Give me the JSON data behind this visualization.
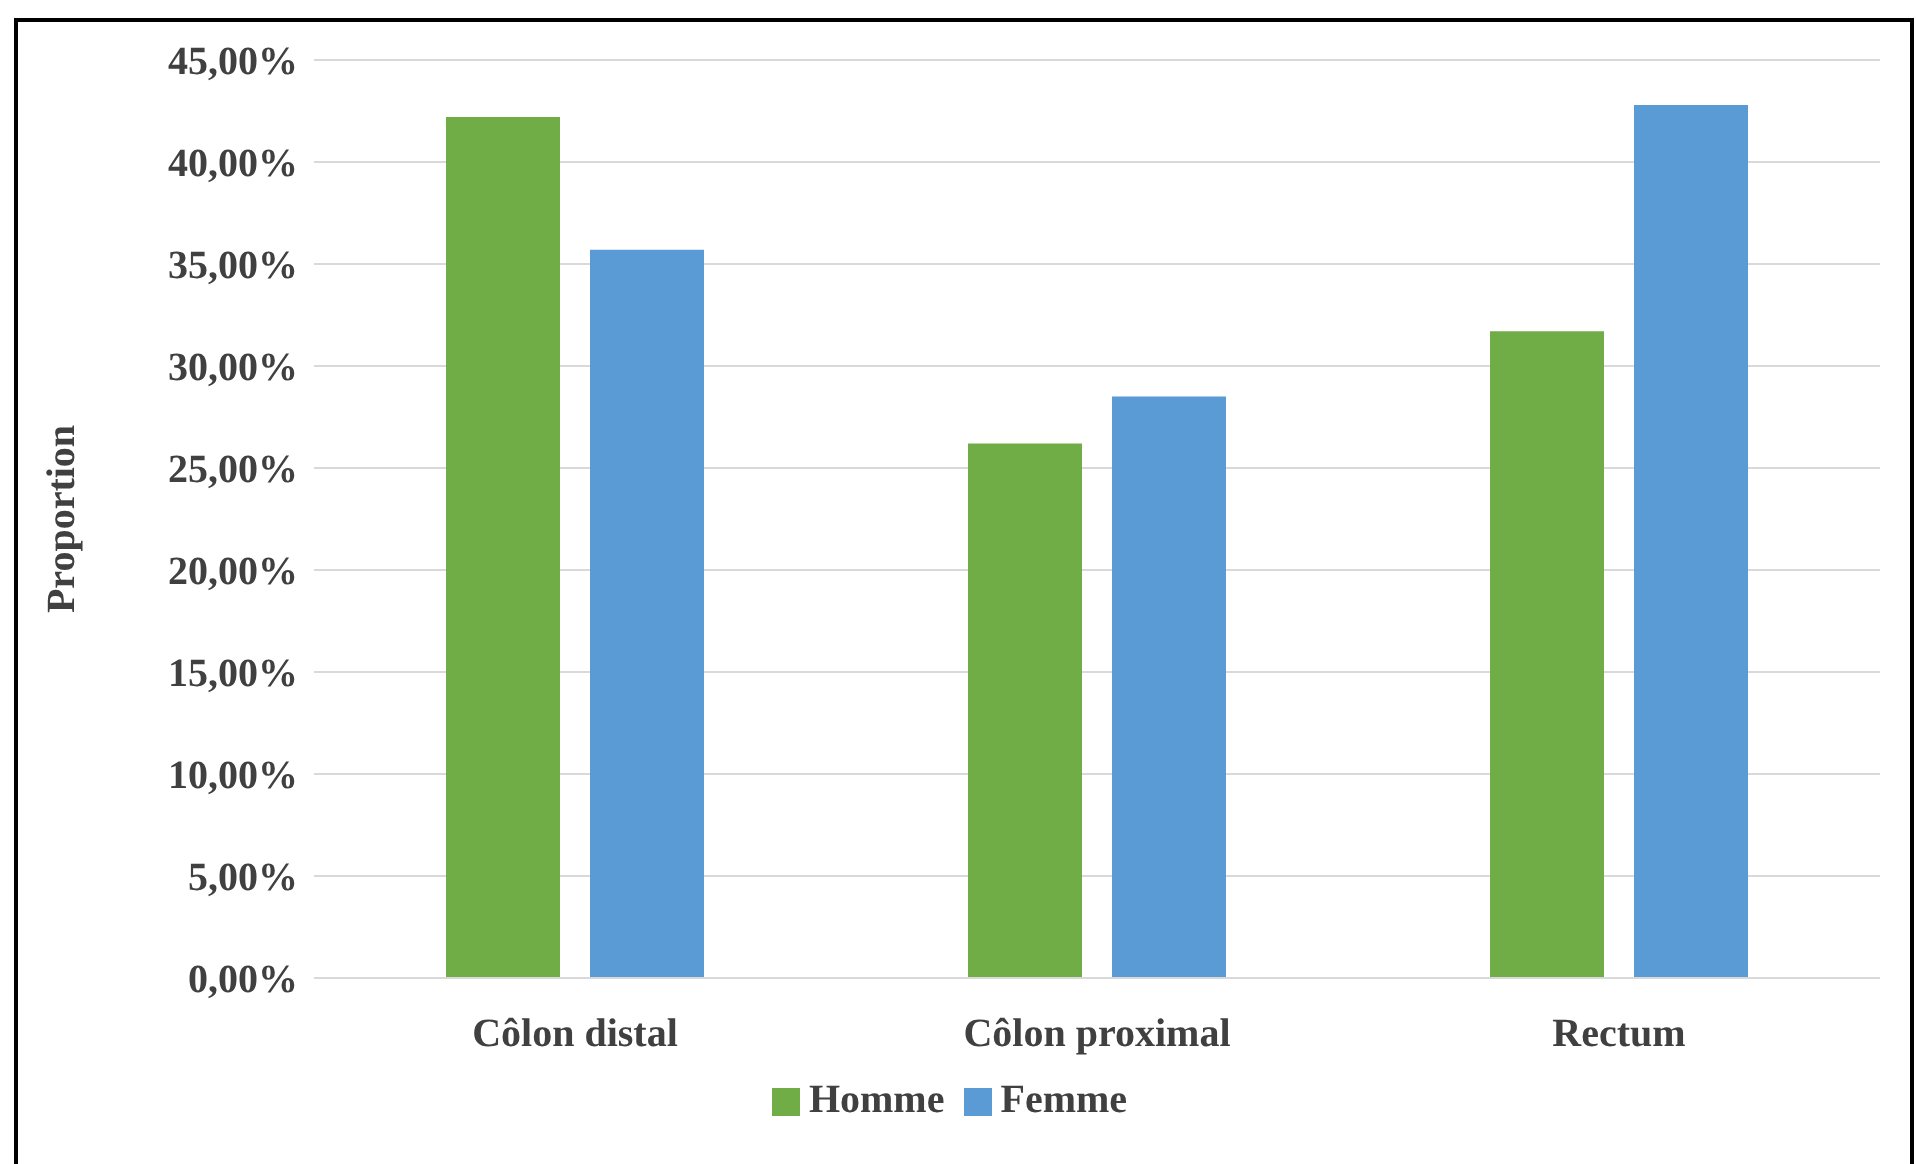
{
  "chart_data": {
    "type": "bar",
    "ylabel": "Proportion",
    "categories": [
      "Côlon distal",
      "Côlon proximal",
      "Rectum"
    ],
    "series": [
      {
        "name": "Homme",
        "color": "#70ad47",
        "values": [
          42.2,
          26.2,
          31.7
        ]
      },
      {
        "name": "Femme",
        "color": "#5b9bd5",
        "values": [
          35.7,
          28.5,
          42.8
        ]
      }
    ],
    "ylim": [
      0,
      45
    ],
    "yticks": [
      {
        "value": 0,
        "label": "0,00%"
      },
      {
        "value": 5,
        "label": "5,00%"
      },
      {
        "value": 10,
        "label": "10,00%"
      },
      {
        "value": 15,
        "label": "15,00%"
      },
      {
        "value": 20,
        "label": "20,00%"
      },
      {
        "value": 25,
        "label": "25,00%"
      },
      {
        "value": 30,
        "label": "30,00%"
      },
      {
        "value": 35,
        "label": "35,00%"
      },
      {
        "value": 40,
        "label": "40,00%"
      },
      {
        "value": 45,
        "label": "45,00%"
      }
    ],
    "grid": "y",
    "legend": "bottom"
  }
}
